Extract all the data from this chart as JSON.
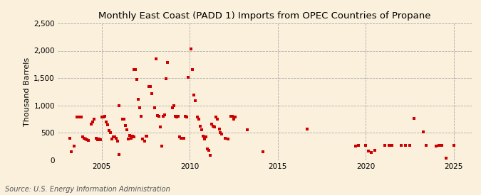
{
  "title": "Monthly East Coast (PADD 1) Imports from OPEC Countries of Propane",
  "ylabel": "Thousand Barrels",
  "source": "Source: U.S. Energy Information Administration",
  "background_color": "#faf0dc",
  "marker_color": "#cc0000",
  "marker_size": 6,
  "xlim": [
    2002.5,
    2026.0
  ],
  "ylim": [
    0,
    2500
  ],
  "yticks": [
    0,
    500,
    1000,
    1500,
    2000,
    2500
  ],
  "ytick_labels": [
    "0",
    "500",
    "1,000",
    "1,500",
    "2,000",
    "2,500"
  ],
  "xticks": [
    2005,
    2010,
    2015,
    2020,
    2025
  ],
  "data_xy": [
    [
      2003.17,
      400
    ],
    [
      2003.25,
      150
    ],
    [
      2003.42,
      250
    ],
    [
      2003.58,
      780
    ],
    [
      2003.75,
      780
    ],
    [
      2003.83,
      780
    ],
    [
      2003.92,
      420
    ],
    [
      2004.0,
      400
    ],
    [
      2004.08,
      380
    ],
    [
      2004.17,
      370
    ],
    [
      2004.25,
      360
    ],
    [
      2004.42,
      650
    ],
    [
      2004.5,
      700
    ],
    [
      2004.58,
      750
    ],
    [
      2004.67,
      400
    ],
    [
      2004.75,
      370
    ],
    [
      2004.83,
      380
    ],
    [
      2004.92,
      370
    ],
    [
      2005.0,
      780
    ],
    [
      2005.08,
      780
    ],
    [
      2005.17,
      800
    ],
    [
      2005.25,
      700
    ],
    [
      2005.33,
      640
    ],
    [
      2005.42,
      540
    ],
    [
      2005.5,
      500
    ],
    [
      2005.58,
      380
    ],
    [
      2005.67,
      420
    ],
    [
      2005.75,
      420
    ],
    [
      2005.83,
      400
    ],
    [
      2005.92,
      350
    ],
    [
      2005.97,
      100
    ],
    [
      2006.0,
      1000
    ],
    [
      2006.17,
      750
    ],
    [
      2006.25,
      750
    ],
    [
      2006.33,
      630
    ],
    [
      2006.42,
      550
    ],
    [
      2006.5,
      380
    ],
    [
      2006.58,
      450
    ],
    [
      2006.67,
      400
    ],
    [
      2006.75,
      430
    ],
    [
      2006.83,
      420
    ],
    [
      2006.83,
      1650
    ],
    [
      2006.92,
      1650
    ],
    [
      2007.0,
      1480
    ],
    [
      2007.08,
      1110
    ],
    [
      2007.17,
      950
    ],
    [
      2007.25,
      800
    ],
    [
      2007.33,
      380
    ],
    [
      2007.42,
      350
    ],
    [
      2007.5,
      430
    ],
    [
      2007.58,
      430
    ],
    [
      2007.67,
      1350
    ],
    [
      2007.75,
      1340
    ],
    [
      2007.83,
      1210
    ],
    [
      2008.0,
      950
    ],
    [
      2008.08,
      1850
    ],
    [
      2008.17,
      810
    ],
    [
      2008.25,
      800
    ],
    [
      2008.33,
      600
    ],
    [
      2008.42,
      250
    ],
    [
      2008.5,
      800
    ],
    [
      2008.58,
      830
    ],
    [
      2008.67,
      1490
    ],
    [
      2008.75,
      1780
    ],
    [
      2009.0,
      950
    ],
    [
      2009.08,
      1000
    ],
    [
      2009.17,
      800
    ],
    [
      2009.25,
      780
    ],
    [
      2009.33,
      800
    ],
    [
      2009.42,
      420
    ],
    [
      2009.5,
      400
    ],
    [
      2009.58,
      400
    ],
    [
      2009.67,
      400
    ],
    [
      2009.75,
      800
    ],
    [
      2009.83,
      780
    ],
    [
      2009.92,
      1510
    ],
    [
      2010.08,
      2030
    ],
    [
      2010.17,
      1650
    ],
    [
      2010.25,
      1190
    ],
    [
      2010.33,
      1080
    ],
    [
      2010.42,
      780
    ],
    [
      2010.5,
      750
    ],
    [
      2010.58,
      620
    ],
    [
      2010.67,
      550
    ],
    [
      2010.75,
      430
    ],
    [
      2010.83,
      380
    ],
    [
      2010.92,
      420
    ],
    [
      2011.0,
      200
    ],
    [
      2011.08,
      180
    ],
    [
      2011.17,
      80
    ],
    [
      2011.25,
      650
    ],
    [
      2011.33,
      620
    ],
    [
      2011.42,
      600
    ],
    [
      2011.5,
      780
    ],
    [
      2011.58,
      750
    ],
    [
      2011.67,
      570
    ],
    [
      2011.75,
      500
    ],
    [
      2011.83,
      480
    ],
    [
      2012.0,
      400
    ],
    [
      2012.17,
      380
    ],
    [
      2012.33,
      800
    ],
    [
      2012.42,
      800
    ],
    [
      2012.5,
      750
    ],
    [
      2012.58,
      780
    ],
    [
      2013.25,
      550
    ],
    [
      2014.17,
      150
    ],
    [
      2016.67,
      570
    ],
    [
      2019.42,
      250
    ],
    [
      2019.58,
      270
    ],
    [
      2020.0,
      260
    ],
    [
      2020.17,
      160
    ],
    [
      2020.33,
      130
    ],
    [
      2020.5,
      170
    ],
    [
      2021.08,
      260
    ],
    [
      2021.33,
      260
    ],
    [
      2021.5,
      260
    ],
    [
      2022.0,
      270
    ],
    [
      2022.25,
      260
    ],
    [
      2022.5,
      260
    ],
    [
      2022.75,
      760
    ],
    [
      2023.25,
      510
    ],
    [
      2023.42,
      270
    ],
    [
      2024.0,
      250
    ],
    [
      2024.17,
      270
    ],
    [
      2024.33,
      260
    ],
    [
      2024.58,
      30
    ],
    [
      2025.0,
      270
    ]
  ]
}
